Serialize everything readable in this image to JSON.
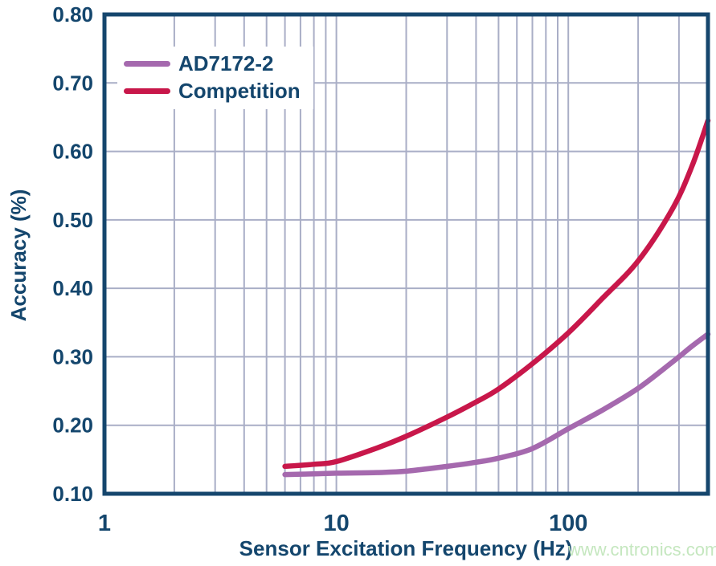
{
  "colors": {
    "text_navy": "#14466d",
    "frame": "#15466d",
    "grid": "#a9aec6",
    "watermark_green": "#c5e7bf",
    "series_ad7172_2": "#a569ae",
    "series_competition": "#c8174a",
    "background": "#ffffff"
  },
  "watermark": "www.cntronics.com",
  "chart_data": {
    "type": "line",
    "title": "",
    "xlabel": "Sensor Excitation Frequency (Hz)",
    "ylabel": "Accuracy (%)",
    "x_scale": "log",
    "xlim": [
      1,
      400
    ],
    "ylim": [
      0.1,
      0.8
    ],
    "x_ticks": [
      1,
      10,
      100
    ],
    "y_ticks": [
      "0.10",
      "0.20",
      "0.30",
      "0.40",
      "0.50",
      "0.60",
      "0.70",
      "0.80"
    ],
    "grid": true,
    "legend_position": "top-left",
    "series": [
      {
        "name": "AD7172-2",
        "color": "#a569ae",
        "points": [
          [
            6,
            0.128
          ],
          [
            8,
            0.129
          ],
          [
            10,
            0.13
          ],
          [
            15,
            0.131
          ],
          [
            20,
            0.133
          ],
          [
            30,
            0.14
          ],
          [
            40,
            0.146
          ],
          [
            50,
            0.152
          ],
          [
            70,
            0.166
          ],
          [
            100,
            0.195
          ],
          [
            140,
            0.222
          ],
          [
            200,
            0.254
          ],
          [
            280,
            0.292
          ],
          [
            340,
            0.315
          ],
          [
            400,
            0.333
          ]
        ]
      },
      {
        "name": "Competition",
        "color": "#c8174a",
        "points": [
          [
            6,
            0.14
          ],
          [
            8,
            0.143
          ],
          [
            10,
            0.147
          ],
          [
            15,
            0.167
          ],
          [
            20,
            0.184
          ],
          [
            30,
            0.212
          ],
          [
            40,
            0.234
          ],
          [
            50,
            0.253
          ],
          [
            70,
            0.29
          ],
          [
            100,
            0.335
          ],
          [
            140,
            0.385
          ],
          [
            200,
            0.44
          ],
          [
            280,
            0.515
          ],
          [
            340,
            0.577
          ],
          [
            400,
            0.645
          ]
        ]
      }
    ]
  }
}
